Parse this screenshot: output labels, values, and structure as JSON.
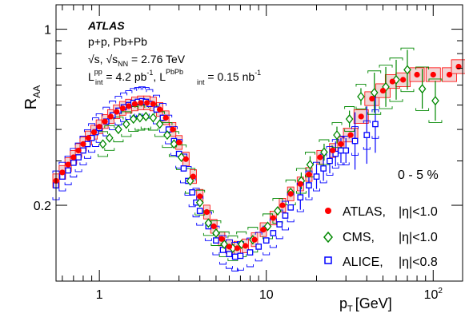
{
  "chart_data": {
    "type": "scatter",
    "title": "",
    "xlabel": "p",
    "xlabel_sub": "T",
    "xlabel_unit": "[GeV]",
    "ylabel": "R",
    "ylabel_sub": "AA",
    "x_scale": "log",
    "y_scale": "log",
    "xlim": [
      0.55,
      150
    ],
    "ylim": [
      0.1,
      1.25
    ],
    "x_ticks": [
      {
        "v": 1,
        "label": "1"
      },
      {
        "v": 10,
        "label": "10"
      },
      {
        "v": 100,
        "label": "10",
        "sup": "2"
      }
    ],
    "y_ticks": [
      {
        "v": 0.2,
        "label": "0.2"
      },
      {
        "v": 1,
        "label": "1"
      }
    ],
    "grid": false,
    "legend_position": "bottom-right",
    "annotations": {
      "experiment": "ATLAS",
      "systems": "p+p, Pb+Pb",
      "energy_prefix": "√s, √s",
      "energy_sub": "NN",
      "energy_value": " = 2.76 TeV",
      "lumi_L1": "L",
      "lumi_sup1": "pp",
      "lumi_sub1": "int",
      "lumi_val1": " = 4.2 pb",
      "lumi_exp1": "-1",
      "lumi_sep": ", L",
      "lumi_sup2": "PbPb",
      "lumi_sub2": "int",
      "lumi_val2": " = 0.15 nb",
      "lumi_exp2": "-1",
      "centrality": "0 - 5 %"
    },
    "series": [
      {
        "name": "ATLAS, |η|<1.0",
        "legend_label": "ATLAS,",
        "legend_cut": "|η|<1.0",
        "marker": "circle",
        "color": "#ff0000",
        "box_fill": "#f2d4d4",
        "points": [
          {
            "x": 0.55,
            "y": 0.25
          },
          {
            "x": 0.6,
            "y": 0.27
          },
          {
            "x": 0.65,
            "y": 0.29
          },
          {
            "x": 0.7,
            "y": 0.31
          },
          {
            "x": 0.75,
            "y": 0.33
          },
          {
            "x": 0.8,
            "y": 0.35
          },
          {
            "x": 0.86,
            "y": 0.37
          },
          {
            "x": 0.93,
            "y": 0.39
          },
          {
            "x": 1.0,
            "y": 0.41
          },
          {
            "x": 1.08,
            "y": 0.43
          },
          {
            "x": 1.17,
            "y": 0.45
          },
          {
            "x": 1.27,
            "y": 0.47
          },
          {
            "x": 1.38,
            "y": 0.485
          },
          {
            "x": 1.5,
            "y": 0.495
          },
          {
            "x": 1.63,
            "y": 0.505
          },
          {
            "x": 1.77,
            "y": 0.51
          },
          {
            "x": 1.93,
            "y": 0.51
          },
          {
            "x": 2.1,
            "y": 0.505
          },
          {
            "x": 2.3,
            "y": 0.48
          },
          {
            "x": 2.5,
            "y": 0.445
          },
          {
            "x": 2.75,
            "y": 0.4
          },
          {
            "x": 3.0,
            "y": 0.355
          },
          {
            "x": 3.3,
            "y": 0.305
          },
          {
            "x": 3.65,
            "y": 0.26
          },
          {
            "x": 4.0,
            "y": 0.217
          },
          {
            "x": 4.4,
            "y": 0.188
          },
          {
            "x": 4.85,
            "y": 0.165
          },
          {
            "x": 5.4,
            "y": 0.147
          },
          {
            "x": 6.0,
            "y": 0.137
          },
          {
            "x": 6.7,
            "y": 0.135
          },
          {
            "x": 7.5,
            "y": 0.138
          },
          {
            "x": 8.5,
            "y": 0.146
          },
          {
            "x": 9.6,
            "y": 0.16
          },
          {
            "x": 11,
            "y": 0.178
          },
          {
            "x": 12.5,
            "y": 0.2
          },
          {
            "x": 14,
            "y": 0.222
          },
          {
            "x": 16,
            "y": 0.243
          },
          {
            "x": 18,
            "y": 0.265
          },
          {
            "x": 21,
            "y": 0.31
          },
          {
            "x": 25,
            "y": 0.33
          },
          {
            "x": 28,
            "y": 0.35
          },
          {
            "x": 32,
            "y": 0.38
          },
          {
            "x": 37,
            "y": 0.45
          },
          {
            "x": 43,
            "y": 0.53
          },
          {
            "x": 50,
            "y": 0.57
          },
          {
            "x": 57,
            "y": 0.62
          },
          {
            "x": 66,
            "y": 0.63
          },
          {
            "x": 80,
            "y": 0.66
          },
          {
            "x": 100,
            "y": 0.66
          },
          {
            "x": 125,
            "y": 0.66
          },
          {
            "x": 142,
            "y": 0.71
          }
        ]
      },
      {
        "name": "CMS, |η|<1.0",
        "legend_label": "CMS,",
        "legend_cut": "|η|<1.0",
        "marker": "diamond",
        "color": "#008800",
        "points": [
          {
            "x": 1.05,
            "y": 0.35
          },
          {
            "x": 1.15,
            "y": 0.37
          },
          {
            "x": 1.3,
            "y": 0.4
          },
          {
            "x": 1.45,
            "y": 0.42
          },
          {
            "x": 1.6,
            "y": 0.44
          },
          {
            "x": 1.75,
            "y": 0.445
          },
          {
            "x": 1.9,
            "y": 0.45
          },
          {
            "x": 2.1,
            "y": 0.445
          },
          {
            "x": 2.3,
            "y": 0.42
          },
          {
            "x": 2.55,
            "y": 0.38
          },
          {
            "x": 2.8,
            "y": 0.35
          },
          {
            "x": 3.1,
            "y": 0.31
          },
          {
            "x": 3.5,
            "y": 0.25
          },
          {
            "x": 4.0,
            "y": 0.205
          },
          {
            "x": 4.5,
            "y": 0.17
          },
          {
            "x": 5.0,
            "y": 0.155
          },
          {
            "x": 5.6,
            "y": 0.14
          },
          {
            "x": 6.3,
            "y": 0.135
          },
          {
            "x": 7.1,
            "y": 0.14
          },
          {
            "x": 8.3,
            "y": 0.146
          },
          {
            "x": 10.2,
            "y": 0.165
          },
          {
            "x": 11.7,
            "y": 0.19
          },
          {
            "x": 14,
            "y": 0.225
          },
          {
            "x": 16.2,
            "y": 0.25
          },
          {
            "x": 18.3,
            "y": 0.29
          },
          {
            "x": 22.2,
            "y": 0.325
          },
          {
            "x": 26.5,
            "y": 0.38
          },
          {
            "x": 31.5,
            "y": 0.44
          },
          {
            "x": 36.9,
            "y": 0.54
          },
          {
            "x": 44.4,
            "y": 0.56
          },
          {
            "x": 52,
            "y": 0.59
          },
          {
            "x": 60,
            "y": 0.63
          },
          {
            "x": 70,
            "y": 0.69
          },
          {
            "x": 86,
            "y": 0.58
          },
          {
            "x": 103,
            "y": 0.52
          }
        ]
      },
      {
        "name": "ALICE, |η|<0.8",
        "legend_label": "ALICE,",
        "legend_cut": "|η|<0.8",
        "marker": "square",
        "color": "#0000ff",
        "points": [
          {
            "x": 0.55,
            "y": 0.24
          },
          {
            "x": 0.6,
            "y": 0.26
          },
          {
            "x": 0.65,
            "y": 0.275
          },
          {
            "x": 0.7,
            "y": 0.295
          },
          {
            "x": 0.75,
            "y": 0.31
          },
          {
            "x": 0.8,
            "y": 0.33
          },
          {
            "x": 0.85,
            "y": 0.35
          },
          {
            "x": 0.9,
            "y": 0.37
          },
          {
            "x": 0.95,
            "y": 0.39
          },
          {
            "x": 1.0,
            "y": 0.405
          },
          {
            "x": 1.1,
            "y": 0.43
          },
          {
            "x": 1.2,
            "y": 0.455
          },
          {
            "x": 1.3,
            "y": 0.475
          },
          {
            "x": 1.4,
            "y": 0.49
          },
          {
            "x": 1.5,
            "y": 0.5
          },
          {
            "x": 1.6,
            "y": 0.51
          },
          {
            "x": 1.7,
            "y": 0.515
          },
          {
            "x": 1.8,
            "y": 0.518
          },
          {
            "x": 1.9,
            "y": 0.515
          },
          {
            "x": 2.0,
            "y": 0.505
          },
          {
            "x": 2.2,
            "y": 0.48
          },
          {
            "x": 2.4,
            "y": 0.445
          },
          {
            "x": 2.6,
            "y": 0.4
          },
          {
            "x": 2.8,
            "y": 0.36
          },
          {
            "x": 3.0,
            "y": 0.32
          },
          {
            "x": 3.2,
            "y": 0.28
          },
          {
            "x": 3.4,
            "y": 0.25
          },
          {
            "x": 3.6,
            "y": 0.225
          },
          {
            "x": 3.8,
            "y": 0.205
          },
          {
            "x": 4.0,
            "y": 0.19
          },
          {
            "x": 4.5,
            "y": 0.165
          },
          {
            "x": 5.0,
            "y": 0.145
          },
          {
            "x": 5.5,
            "y": 0.133
          },
          {
            "x": 6.0,
            "y": 0.128
          },
          {
            "x": 6.5,
            "y": 0.125
          },
          {
            "x": 7.0,
            "y": 0.126
          },
          {
            "x": 8.0,
            "y": 0.13
          },
          {
            "x": 9.0,
            "y": 0.137
          },
          {
            "x": 10,
            "y": 0.145
          },
          {
            "x": 11,
            "y": 0.155
          },
          {
            "x": 12,
            "y": 0.168
          },
          {
            "x": 13,
            "y": 0.182
          },
          {
            "x": 14,
            "y": 0.196
          },
          {
            "x": 16,
            "y": 0.215
          },
          {
            "x": 18,
            "y": 0.24
          },
          {
            "x": 20,
            "y": 0.26
          },
          {
            "x": 22,
            "y": 0.28
          },
          {
            "x": 24,
            "y": 0.3
          },
          {
            "x": 26,
            "y": 0.32
          },
          {
            "x": 28,
            "y": 0.33
          },
          {
            "x": 30,
            "y": 0.33
          },
          {
            "x": 34,
            "y": 0.36
          },
          {
            "x": 40,
            "y": 0.38
          },
          {
            "x": 45,
            "y": 0.42
          }
        ]
      }
    ]
  }
}
